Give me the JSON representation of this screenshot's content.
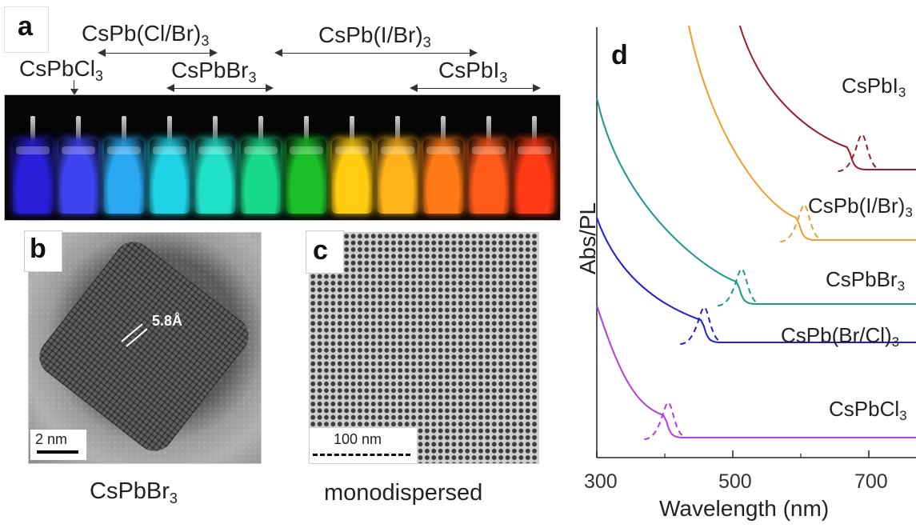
{
  "panel_a": {
    "label": "a",
    "range_labels": [
      {
        "base": "CsPb(Cl/Br)",
        "sub": "3"
      },
      {
        "base": "CsPb(I/Br)",
        "sub": "3"
      }
    ],
    "compound_labels": [
      {
        "base": "CsPbCl",
        "sub": "3"
      },
      {
        "base": "CsPbBr",
        "sub": "3"
      },
      {
        "base": "CsPbI",
        "sub": "3"
      }
    ],
    "vial_colors": [
      "#2a1fd8",
      "#3d45f0",
      "#2aa8f2",
      "#1fd3e6",
      "#21e0c8",
      "#17d98a",
      "#1bbf2a",
      "#ffcc10",
      "#ffb21a",
      "#ff7a14",
      "#ff5a1a",
      "#ff3a14"
    ]
  },
  "panel_b": {
    "label": "b",
    "spacing_label": "5.8Å",
    "scale_label": "2 nm",
    "caption": {
      "base": "CsPbBr",
      "sub": "3"
    }
  },
  "panel_c": {
    "label": "c",
    "scale_label": "100 nm",
    "caption": "monodispersed"
  },
  "panel_d": {
    "label": "d",
    "ylabel": "Abs/PL",
    "xlabel": "Wavelength (nm)",
    "tick_labels": [
      "300",
      "500",
      "700"
    ],
    "series_labels": [
      {
        "base": "CsPbI",
        "sub": "3",
        "color": "#9b1c2a"
      },
      {
        "base": "CsPb(I/Br)",
        "sub": "3",
        "color": "#f39c2a"
      },
      {
        "base": "CsPbBr",
        "sub": "3",
        "color": "#1a9a8c"
      },
      {
        "base": "CsPb(Br/Cl)",
        "sub": "3",
        "color": "#1f1fd6"
      },
      {
        "base": "CsPbCl",
        "sub": "3",
        "color": "#b83ce0"
      }
    ]
  },
  "chart_data": {
    "type": "line",
    "xlabel": "Wavelength (nm)",
    "ylabel": "Abs/PL",
    "xlim": [
      300,
      800
    ],
    "x_ticks": [
      300,
      500,
      700
    ],
    "series": [
      {
        "name": "CsPbCl3",
        "color": "#b83ce0",
        "abs_edge_nm": 405,
        "pl_peak_nm": 405
      },
      {
        "name": "CsPb(Br/Cl)3",
        "color": "#1f1fd6",
        "abs_edge_nm": 460,
        "pl_peak_nm": 458
      },
      {
        "name": "CsPbBr3",
        "color": "#1a9a8c",
        "abs_edge_nm": 512,
        "pl_peak_nm": 513
      },
      {
        "name": "CsPb(I/Br)3",
        "color": "#f39c2a",
        "abs_edge_nm": 600,
        "pl_peak_nm": 605
      },
      {
        "name": "CsPbI3",
        "color": "#9b1c2a",
        "abs_edge_nm": 675,
        "pl_peak_nm": 690
      }
    ]
  }
}
